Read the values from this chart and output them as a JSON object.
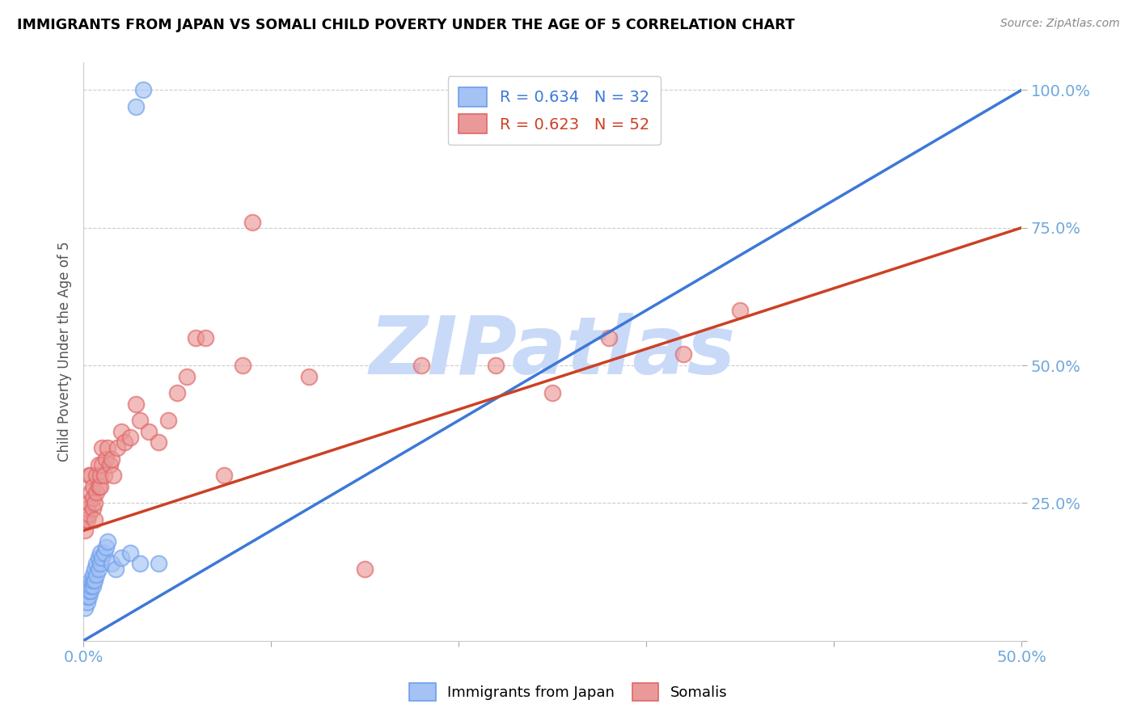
{
  "title": "IMMIGRANTS FROM JAPAN VS SOMALI CHILD POVERTY UNDER THE AGE OF 5 CORRELATION CHART",
  "source": "Source: ZipAtlas.com",
  "ylabel": "Child Poverty Under the Age of 5",
  "yticks": [
    0.0,
    0.25,
    0.5,
    0.75,
    1.0
  ],
  "ytick_labels": [
    "",
    "25.0%",
    "50.0%",
    "75.0%",
    "100.0%"
  ],
  "xticks": [
    0.0,
    0.1,
    0.2,
    0.3,
    0.4,
    0.5
  ],
  "xtick_labels": [
    "0.0%",
    "",
    "",
    "",
    "",
    "50.0%"
  ],
  "xlim": [
    0.0,
    0.5
  ],
  "ylim": [
    0.0,
    1.05
  ],
  "blue_R": 0.634,
  "blue_N": 32,
  "pink_R": 0.623,
  "pink_N": 52,
  "blue_fill_color": "#a4c2f4",
  "pink_fill_color": "#ea9999",
  "blue_edge_color": "#6d9eeb",
  "pink_edge_color": "#e06666",
  "blue_line_color": "#3c78d8",
  "pink_line_color": "#cc4125",
  "legend_label_blue": "Immigrants from Japan",
  "legend_label_pink": "Somalis",
  "watermark": "ZIPatlas",
  "watermark_color": "#c9daf8",
  "title_color": "#000000",
  "axis_label_color": "#555555",
  "tick_color": "#6fa8dc",
  "grid_color": "#cccccc",
  "background_color": "#ffffff",
  "blue_scatter_x": [
    0.001,
    0.002,
    0.002,
    0.003,
    0.003,
    0.003,
    0.004,
    0.004,
    0.004,
    0.005,
    0.005,
    0.005,
    0.006,
    0.006,
    0.007,
    0.007,
    0.008,
    0.008,
    0.009,
    0.009,
    0.01,
    0.011,
    0.012,
    0.013,
    0.015,
    0.017,
    0.02,
    0.025,
    0.03,
    0.04,
    0.028,
    0.032
  ],
  "blue_scatter_y": [
    0.06,
    0.07,
    0.08,
    0.08,
    0.09,
    0.1,
    0.09,
    0.1,
    0.11,
    0.1,
    0.11,
    0.12,
    0.11,
    0.13,
    0.12,
    0.14,
    0.13,
    0.15,
    0.14,
    0.16,
    0.15,
    0.16,
    0.17,
    0.18,
    0.14,
    0.13,
    0.15,
    0.16,
    0.14,
    0.14,
    0.97,
    1.0
  ],
  "pink_scatter_x": [
    0.001,
    0.001,
    0.002,
    0.002,
    0.003,
    0.003,
    0.003,
    0.004,
    0.004,
    0.005,
    0.005,
    0.005,
    0.006,
    0.006,
    0.007,
    0.007,
    0.008,
    0.008,
    0.009,
    0.009,
    0.01,
    0.01,
    0.011,
    0.012,
    0.013,
    0.014,
    0.015,
    0.016,
    0.018,
    0.02,
    0.022,
    0.025,
    0.028,
    0.03,
    0.035,
    0.04,
    0.045,
    0.05,
    0.055,
    0.06,
    0.065,
    0.075,
    0.085,
    0.09,
    0.12,
    0.15,
    0.18,
    0.22,
    0.25,
    0.28,
    0.32,
    0.35
  ],
  "pink_scatter_y": [
    0.2,
    0.22,
    0.22,
    0.24,
    0.23,
    0.25,
    0.3,
    0.27,
    0.3,
    0.24,
    0.26,
    0.28,
    0.22,
    0.25,
    0.27,
    0.3,
    0.28,
    0.32,
    0.28,
    0.3,
    0.32,
    0.35,
    0.3,
    0.33,
    0.35,
    0.32,
    0.33,
    0.3,
    0.35,
    0.38,
    0.36,
    0.37,
    0.43,
    0.4,
    0.38,
    0.36,
    0.4,
    0.45,
    0.48,
    0.55,
    0.55,
    0.3,
    0.5,
    0.76,
    0.48,
    0.13,
    0.5,
    0.5,
    0.45,
    0.55,
    0.52,
    0.6
  ],
  "blue_trend": [
    0.0,
    0.5,
    0.0,
    1.0
  ],
  "pink_trend": [
    0.0,
    0.5,
    0.2,
    0.75
  ]
}
